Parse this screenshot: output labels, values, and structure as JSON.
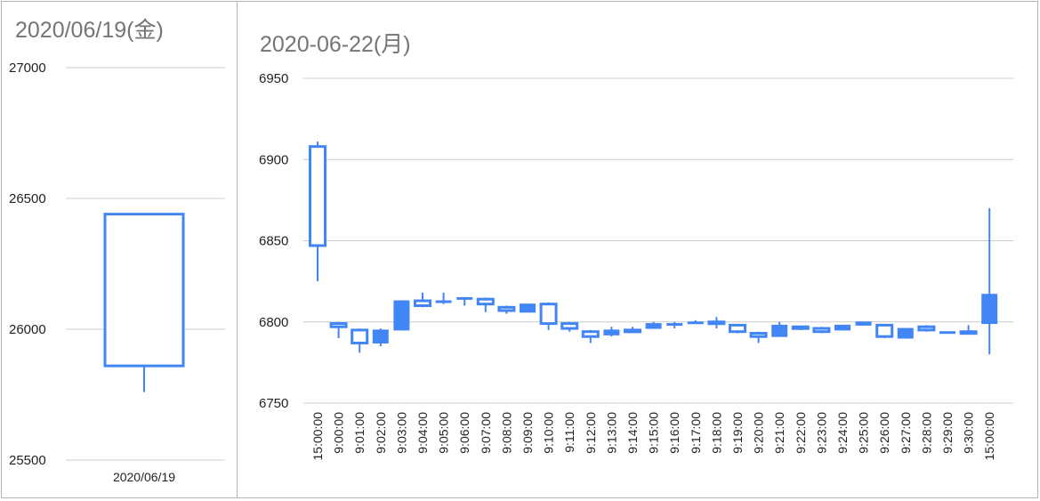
{
  "colors": {
    "candle": "#4285f4",
    "grid": "#cccccc",
    "text": "#222222",
    "title": "#757575",
    "border": "#b5b5b5"
  },
  "chart_data": [
    {
      "type": "candlestick",
      "title": "2020/06/19(金)",
      "ylim": [
        25500,
        27000
      ],
      "yticks": [
        25500,
        26000,
        26500,
        27000
      ],
      "grid": true,
      "categories": [
        "2020/06/19"
      ],
      "candles": [
        {
          "x": "2020/06/19",
          "open": 25860,
          "high": 26440,
          "low": 25760,
          "close": 26440
        }
      ]
    },
    {
      "type": "candlestick",
      "title": "2020-06-22(月)",
      "ylim": [
        6750,
        6950
      ],
      "yticks": [
        6750,
        6800,
        6850,
        6900,
        6950
      ],
      "grid": true,
      "categories": [
        "15:00:00",
        "9:00:00",
        "9:01:00",
        "9:02:00",
        "9:03:00",
        "9:04:00",
        "9:05:00",
        "9:06:00",
        "9:07:00",
        "9:08:00",
        "9:09:00",
        "9:10:00",
        "9:11:00",
        "9:12:00",
        "9:13:00",
        "9:14:00",
        "9:15:00",
        "9:16:00",
        "9:17:00",
        "9:18:00",
        "9:19:00",
        "9:20:00",
        "9:21:00",
        "9:22:00",
        "9:23:00",
        "9:24:00",
        "9:25:00",
        "9:26:00",
        "9:27:00",
        "9:28:00",
        "9:29:00",
        "9:30:00",
        "15:00:00"
      ],
      "candles": [
        {
          "x": "15:00:00",
          "open": 6847,
          "high": 6911,
          "low": 6825,
          "close": 6908
        },
        {
          "x": "9:00:00",
          "open": 6797,
          "high": 6800,
          "low": 6790,
          "close": 6799
        },
        {
          "x": "9:01:00",
          "open": 6787,
          "high": 6796,
          "low": 6781,
          "close": 6795
        },
        {
          "x": "9:02:00",
          "open": 6795,
          "high": 6796,
          "low": 6785,
          "close": 6787
        },
        {
          "x": "9:03:00",
          "open": 6813,
          "high": 6813,
          "low": 6795,
          "close": 6795
        },
        {
          "x": "9:04:00",
          "open": 6810,
          "high": 6818,
          "low": 6809,
          "close": 6813
        },
        {
          "x": "9:05:00",
          "open": 6813,
          "high": 6818,
          "low": 6811,
          "close": 6812
        },
        {
          "x": "9:06:00",
          "open": 6815,
          "high": 6815,
          "low": 6810,
          "close": 6814
        },
        {
          "x": "9:07:00",
          "open": 6811,
          "high": 6815,
          "low": 6806,
          "close": 6814
        },
        {
          "x": "9:08:00",
          "open": 6807,
          "high": 6810,
          "low": 6805,
          "close": 6809
        },
        {
          "x": "9:09:00",
          "open": 6811,
          "high": 6811,
          "low": 6806,
          "close": 6806
        },
        {
          "x": "9:10:00",
          "open": 6799,
          "high": 6812,
          "low": 6795,
          "close": 6811
        },
        {
          "x": "9:11:00",
          "open": 6796,
          "high": 6800,
          "low": 6794,
          "close": 6799
        },
        {
          "x": "9:12:00",
          "open": 6791,
          "high": 6795,
          "low": 6787,
          "close": 6794
        },
        {
          "x": "9:13:00",
          "open": 6795,
          "high": 6797,
          "low": 6791,
          "close": 6792
        },
        {
          "x": "9:14:00",
          "open": 6795,
          "high": 6797,
          "low": 6794,
          "close": 6795
        },
        {
          "x": "9:15:00",
          "open": 6799,
          "high": 6800,
          "low": 6796,
          "close": 6796
        },
        {
          "x": "9:16:00",
          "open": 6799,
          "high": 6800,
          "low": 6796,
          "close": 6798
        },
        {
          "x": "9:17:00",
          "open": 6800,
          "high": 6801,
          "low": 6799,
          "close": 6799
        },
        {
          "x": "9:18:00",
          "open": 6800,
          "high": 6803,
          "low": 6796,
          "close": 6800
        },
        {
          "x": "9:19:00",
          "open": 6794,
          "high": 6798,
          "low": 6793,
          "close": 6798
        },
        {
          "x": "9:20:00",
          "open": 6791,
          "high": 6794,
          "low": 6787,
          "close": 6793
        },
        {
          "x": "9:21:00",
          "open": 6798,
          "high": 6800,
          "low": 6791,
          "close": 6791
        },
        {
          "x": "9:22:00",
          "open": 6796,
          "high": 6797,
          "low": 6795,
          "close": 6797
        },
        {
          "x": "9:23:00",
          "open": 6794,
          "high": 6797,
          "low": 6793,
          "close": 6796
        },
        {
          "x": "9:24:00",
          "open": 6798,
          "high": 6798,
          "low": 6795,
          "close": 6795
        },
        {
          "x": "9:25:00",
          "open": 6800,
          "high": 6800,
          "low": 6798,
          "close": 6798
        },
        {
          "x": "9:26:00",
          "open": 6791,
          "high": 6798,
          "low": 6790,
          "close": 6798
        },
        {
          "x": "9:27:00",
          "open": 6796,
          "high": 6796,
          "low": 6790,
          "close": 6790
        },
        {
          "x": "9:28:00",
          "open": 6795,
          "high": 6798,
          "low": 6794,
          "close": 6797
        },
        {
          "x": "9:29:00",
          "open": 6794,
          "high": 6794,
          "low": 6793,
          "close": 6793
        },
        {
          "x": "9:30:00",
          "open": 6794,
          "high": 6798,
          "low": 6793,
          "close": 6794
        },
        {
          "x": "15:00:00",
          "open": 6817,
          "high": 6870,
          "low": 6780,
          "close": 6799
        }
      ]
    }
  ]
}
